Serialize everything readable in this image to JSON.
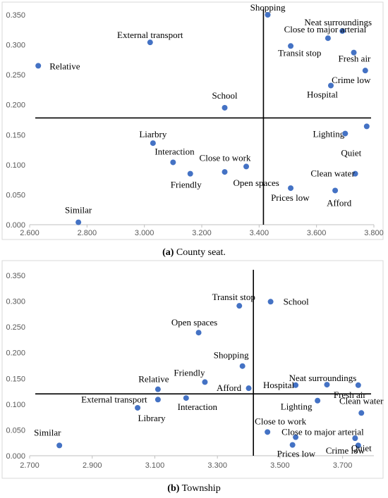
{
  "chart_data": [
    {
      "type": "scatter",
      "caption_letter": "(a)",
      "caption_text": "County seat.",
      "xlim": [
        2.6,
        3.8
      ],
      "ylim": [
        0,
        0.35
      ],
      "xticks": [
        "2.600",
        "2.800",
        "3.000",
        "3.200",
        "3.400",
        "3.600",
        "3.800"
      ],
      "yticks": [
        "0.000",
        "0.050",
        "0.100",
        "0.150",
        "0.200",
        "0.250",
        "0.300",
        "0.350"
      ],
      "reference_lines": {
        "x": 3.415,
        "y": 0.178
      },
      "marker_color": "#4472C4",
      "points": [
        {
          "label": "Shopping",
          "x": 3.43,
          "y": 0.35
        },
        {
          "label": "Neat surroundings",
          "x": 3.69,
          "y": 0.323
        },
        {
          "label": "Close to major arterial",
          "x": 3.64,
          "y": 0.311
        },
        {
          "label": "External transport",
          "x": 3.02,
          "y": 0.304
        },
        {
          "label": "Transit stop",
          "x": 3.51,
          "y": 0.298
        },
        {
          "label": "Fresh air",
          "x": 3.73,
          "y": 0.287
        },
        {
          "label": "Relative",
          "x": 2.63,
          "y": 0.265
        },
        {
          "label": "Crime low",
          "x": 3.77,
          "y": 0.257
        },
        {
          "label": "Hospital",
          "x": 3.65,
          "y": 0.232
        },
        {
          "label": "School",
          "x": 3.28,
          "y": 0.195
        },
        {
          "label": "Lighting",
          "x": 3.775,
          "y": 0.164
        },
        {
          "label": "Quiet",
          "x": 3.7,
          "y": 0.152
        },
        {
          "label": "Liarbry",
          "x": 3.03,
          "y": 0.136
        },
        {
          "label": "Interaction",
          "x": 3.1,
          "y": 0.104
        },
        {
          "label": "Close to work",
          "x": 3.355,
          "y": 0.097
        },
        {
          "label": "Open spaces",
          "x": 3.28,
          "y": 0.088
        },
        {
          "label": "Friendly",
          "x": 3.16,
          "y": 0.085
        },
        {
          "label": "Clean water",
          "x": 3.735,
          "y": 0.085
        },
        {
          "label": "Prices low",
          "x": 3.51,
          "y": 0.061
        },
        {
          "label": "Afford",
          "x": 3.665,
          "y": 0.057
        },
        {
          "label": "Similar",
          "x": 2.77,
          "y": 0.004
        }
      ]
    },
    {
      "type": "scatter",
      "caption_letter": "(b)",
      "caption_text": "Township",
      "xlim": [
        2.7,
        3.8
      ],
      "ylim": [
        0,
        0.35
      ],
      "xticks": [
        "2.700",
        "2.900",
        "3.100",
        "3.300",
        "3.500",
        "3.700"
      ],
      "yticks": [
        "0.000",
        "0.050",
        "0.100",
        "0.150",
        "0.200",
        "0.250",
        "0.300",
        "0.350"
      ],
      "reference_lines": {
        "x": 3.415,
        "y": 0.12
      },
      "marker_color": "#4472C4",
      "points": [
        {
          "label": "School",
          "x": 3.47,
          "y": 0.299
        },
        {
          "label": "Transit stop",
          "x": 3.37,
          "y": 0.291
        },
        {
          "label": "Open spaces",
          "x": 3.24,
          "y": 0.239
        },
        {
          "label": "Shopping",
          "x": 3.38,
          "y": 0.174
        },
        {
          "label": "Friendly",
          "x": 3.26,
          "y": 0.143
        },
        {
          "label": "Neat surroundings",
          "x": 3.65,
          "y": 0.138
        },
        {
          "label": "Hospital",
          "x": 3.55,
          "y": 0.137
        },
        {
          "label": "Fresh air",
          "x": 3.75,
          "y": 0.137
        },
        {
          "label": "Afford",
          "x": 3.4,
          "y": 0.131
        },
        {
          "label": "Relative",
          "x": 3.11,
          "y": 0.129
        },
        {
          "label": "Interaction",
          "x": 3.2,
          "y": 0.112
        },
        {
          "label": "External transport",
          "x": 3.11,
          "y": 0.109
        },
        {
          "label": "Lighting",
          "x": 3.62,
          "y": 0.107
        },
        {
          "label": "Library",
          "x": 3.045,
          "y": 0.093
        },
        {
          "label": "Clean water",
          "x": 3.76,
          "y": 0.083
        },
        {
          "label": "Close to work",
          "x": 3.46,
          "y": 0.046
        },
        {
          "label": "Close to major arterial",
          "x": 3.55,
          "y": 0.036
        },
        {
          "label": "Crime low",
          "x": 3.74,
          "y": 0.034
        },
        {
          "label": "Prices low",
          "x": 3.54,
          "y": 0.021
        },
        {
          "label": "Quiet",
          "x": 3.75,
          "y": 0.02
        },
        {
          "label": "Similar",
          "x": 2.795,
          "y": 0.02
        }
      ]
    }
  ]
}
